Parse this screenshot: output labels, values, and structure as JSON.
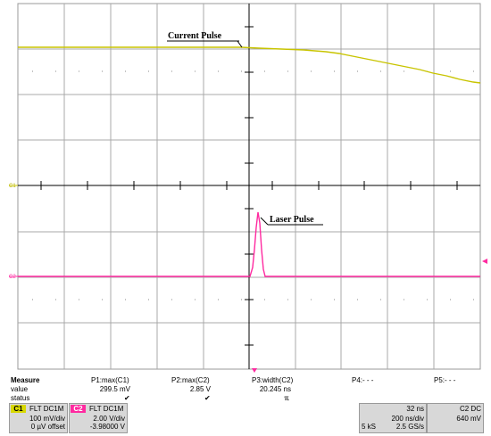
{
  "annotations": {
    "current_pulse": "Current Pulse",
    "laser_pulse": "Laser Pulse"
  },
  "channel_markers": {
    "c1": "C1",
    "c2": "C2"
  },
  "measure": {
    "header_label": "Measure",
    "value_label": "value",
    "status_label": "status",
    "p1": {
      "name": "P1:max(C1)",
      "value": "299.5 mV",
      "status": "✔"
    },
    "p2": {
      "name": "P2:max(C2)",
      "value": "2.85 V",
      "status": "✔"
    },
    "p3": {
      "name": "P3:width(C2)",
      "value": "20.245 ns",
      "status": "ℼ"
    },
    "p4": {
      "name": "P4:- - -"
    },
    "p5": {
      "name": "P5:- - -"
    }
  },
  "channels": {
    "c1": {
      "tag": "C1",
      "coupling": "FLT  DC1M",
      "scale": "100 mV/div",
      "offset": "0 µV offset",
      "color": "#d8d800"
    },
    "c2": {
      "tag": "C2",
      "coupling": "FLT  DC1M",
      "scale": "2.00 V/div",
      "offset": "-3.98000 V",
      "color": "#ff2aa0"
    }
  },
  "timebase": {
    "delay": "32 ns",
    "time_per_div": "200 ns/div",
    "samples": "5 kS",
    "sample_rate": "2.5 GS/s"
  },
  "trigger": {
    "label": "C2 DC",
    "level": "640 mV"
  },
  "colors": {
    "ch1": "#c8c400",
    "ch2": "#ff2aa0",
    "grid": "#a8a8a8",
    "axis": "#000000"
  }
}
